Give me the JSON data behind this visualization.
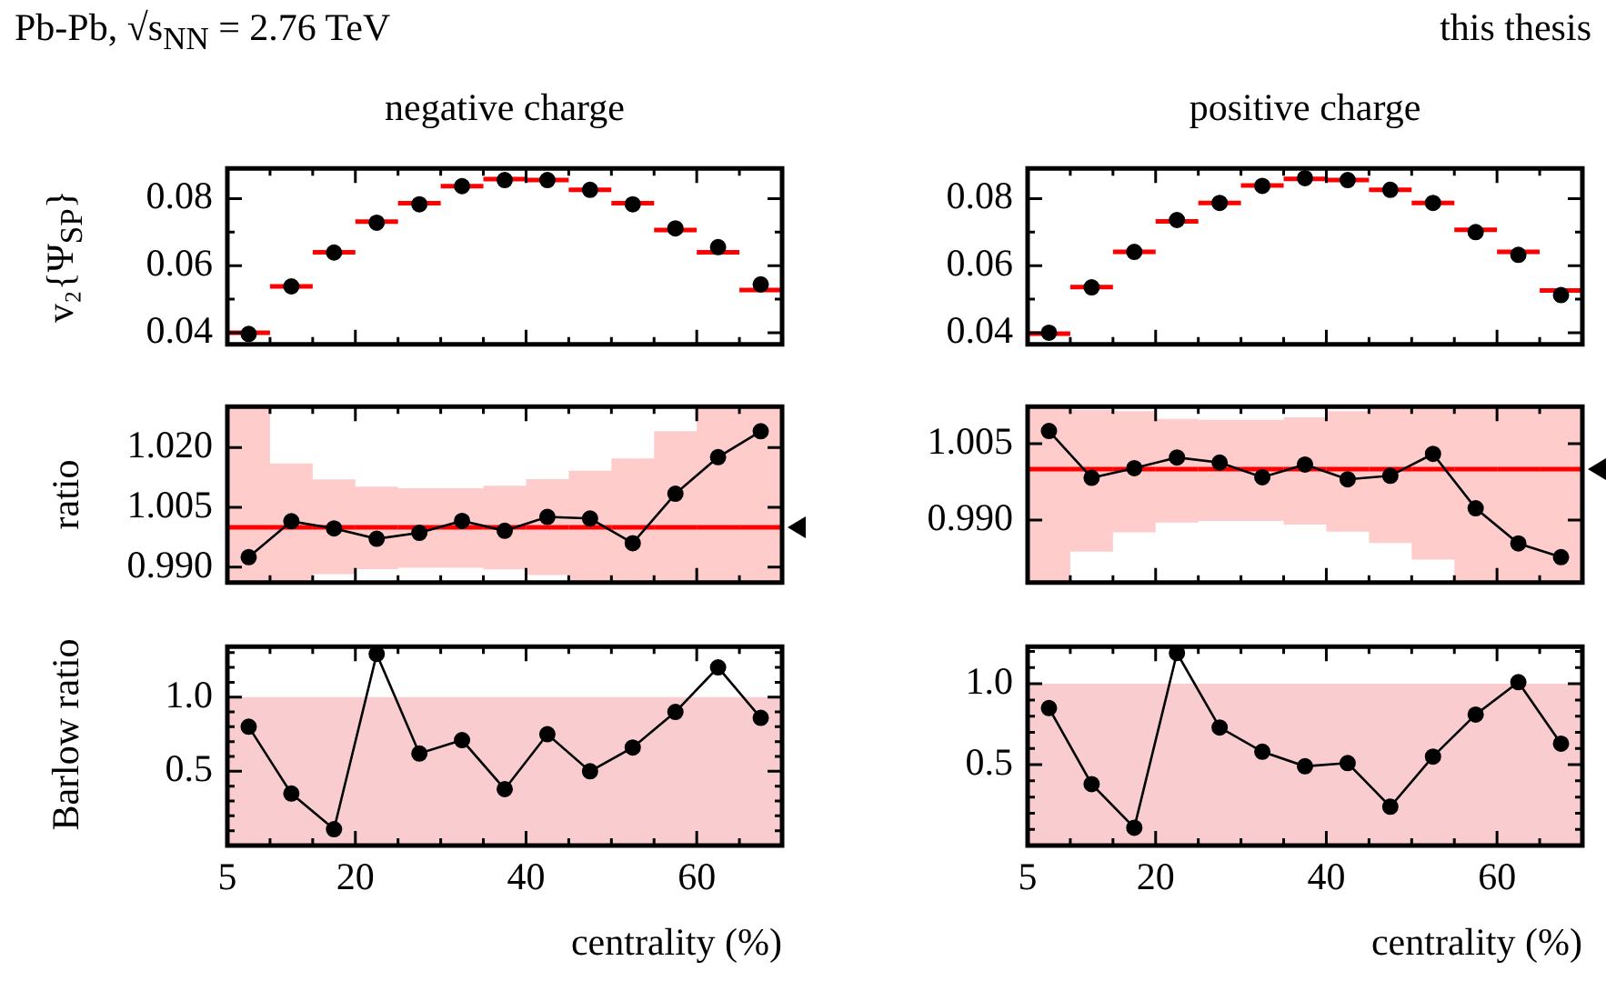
{
  "chart_data": [
    {
      "type": "scatter",
      "title": "negative charge",
      "ylabel": "v₂{Ψ$_{SP}$}",
      "annotations": [
        "Pb-Pb, √s$_{NN}$ = 2.76 TeV"
      ],
      "x": [
        7.5,
        12.5,
        17.5,
        22.5,
        27.5,
        32.5,
        37.5,
        42.5,
        47.5,
        52.5,
        57.5,
        62.5,
        67.5
      ],
      "xlim": [
        5,
        70
      ],
      "xticks": [
        5,
        {
          "value": 10,
          "label": null
        },
        {
          "value": 15,
          "label": null
        },
        20,
        {
          "value": 25,
          "label": null
        },
        {
          "value": 30,
          "label": null
        },
        {
          "value": 35,
          "label": null
        },
        40,
        {
          "value": 45,
          "label": null
        },
        {
          "value": 50,
          "label": null
        },
        {
          "value": 55,
          "label": null
        },
        60,
        {
          "value": 65,
          "label": null
        }
      ],
      "ylim": [
        0.0365,
        0.089
      ],
      "yticks": [
        0.04,
        {
          "value": 0.05,
          "label": null
        },
        0.06,
        {
          "value": 0.07,
          "label": null
        },
        0.08
      ],
      "tick_labels": "y",
      "series": [
        {
          "type": "step",
          "color": "#ff0000",
          "x": [
            5,
            10,
            15,
            20,
            25,
            30,
            35,
            40,
            45,
            50,
            55,
            60,
            65,
            70
          ],
          "values": [
            0.04,
            0.0538,
            0.064,
            0.0731,
            0.0786,
            0.0837,
            0.0858,
            0.0855,
            0.0826,
            0.0786,
            0.0706,
            0.064,
            0.0527,
            0.0527
          ]
        },
        {
          "color": "#000000",
          "marker": "circle",
          "values": [
            0.0396,
            0.0538,
            0.0639,
            0.0728,
            0.0783,
            0.0837,
            0.0855,
            0.0855,
            0.0826,
            0.0783,
            0.0711,
            0.0655,
            0.0544
          ]
        }
      ]
    },
    {
      "type": "scatter",
      "title": "positive charge",
      "annotations": [
        "this thesis"
      ],
      "x": [
        7.5,
        12.5,
        17.5,
        22.5,
        27.5,
        32.5,
        37.5,
        42.5,
        47.5,
        52.5,
        57.5,
        62.5,
        67.5
      ],
      "xlim": [
        5,
        70
      ],
      "xticks": [
        5,
        {
          "value": 10,
          "label": null
        },
        {
          "value": 15,
          "label": null
        },
        20,
        {
          "value": 25,
          "label": null
        },
        {
          "value": 30,
          "label": null
        },
        {
          "value": 35,
          "label": null
        },
        40,
        {
          "value": 45,
          "label": null
        },
        {
          "value": 50,
          "label": null
        },
        {
          "value": 55,
          "label": null
        },
        60,
        {
          "value": 65,
          "label": null
        }
      ],
      "ylim": [
        0.0365,
        0.089
      ],
      "yticks": [
        0.04,
        {
          "value": 0.05,
          "label": null
        },
        0.06,
        {
          "value": 0.07,
          "label": null
        },
        0.08
      ],
      "tick_labels": "y",
      "series": [
        {
          "type": "step",
          "color": "#ff0000",
          "x": [
            5,
            10,
            15,
            20,
            25,
            30,
            35,
            40,
            45,
            50,
            55,
            60,
            65,
            70
          ],
          "values": [
            0.0397,
            0.0536,
            0.0641,
            0.0732,
            0.0787,
            0.0839,
            0.0859,
            0.0855,
            0.0826,
            0.0787,
            0.0707,
            0.0641,
            0.0526,
            0.0526
          ]
        },
        {
          "color": "#000000",
          "marker": "circle",
          "values": [
            0.04,
            0.0535,
            0.0641,
            0.0736,
            0.0787,
            0.0838,
            0.0861,
            0.0855,
            0.0826,
            0.0787,
            0.07,
            0.0632,
            0.0512
          ]
        }
      ]
    },
    {
      "type": "line",
      "ylabel": "ratio",
      "x": [
        7.5,
        12.5,
        17.5,
        22.5,
        27.5,
        32.5,
        37.5,
        42.5,
        47.5,
        52.5,
        57.5,
        62.5,
        67.5
      ],
      "xlim": [
        5,
        70
      ],
      "xticks": [
        5,
        {
          "value": 10,
          "label": null
        },
        {
          "value": 15,
          "label": null
        },
        20,
        {
          "value": 25,
          "label": null
        },
        {
          "value": 30,
          "label": null
        },
        {
          "value": 35,
          "label": null
        },
        40,
        {
          "value": 45,
          "label": null
        },
        {
          "value": 50,
          "label": null
        },
        {
          "value": 55,
          "label": null
        },
        60,
        {
          "value": 65,
          "label": null
        }
      ],
      "ylim": [
        0.9861,
        1.0303
      ],
      "yticks": [
        {
          "value": 0.99,
          "label": "0.990"
        },
        {
          "value": 1.005,
          "label": "1.005"
        },
        {
          "value": 1.02,
          "label": "1.020"
        }
      ],
      "tick_labels": "y",
      "series": [
        {
          "type": "step",
          "color": "#ff0000",
          "x": [
            5,
            10,
            15,
            20,
            25,
            30,
            35,
            40,
            45,
            50,
            55,
            60,
            65,
            70
          ],
          "values": [
            1,
            1,
            1,
            1,
            1,
            1,
            1,
            1,
            1,
            1,
            1,
            1,
            1,
            1
          ],
          "lower": [
            0.9861,
            0.9861,
            0.9882,
            0.9895,
            0.9898,
            0.9898,
            0.9894,
            0.988,
            0.9861,
            0.9861,
            0.9861,
            0.9861,
            0.9861,
            0.9861
          ],
          "upper": [
            1.0303,
            1.016,
            1.012,
            1.0102,
            1.0098,
            1.0098,
            1.0104,
            1.0121,
            1.0142,
            1.0173,
            1.0241,
            1.0303,
            1.0303,
            1.0303
          ]
        },
        {
          "color": "#000000",
          "marker": "circle",
          "values": [
            0.9925,
            1.0015,
            0.9997,
            0.9971,
            0.9986,
            1.0016,
            0.9991,
            1.0026,
            1.0022,
            0.996,
            1.0084,
            1.0176,
            1.0241
          ]
        }
      ]
    },
    {
      "type": "line",
      "x": [
        7.5,
        12.5,
        17.5,
        22.5,
        27.5,
        32.5,
        37.5,
        42.5,
        47.5,
        52.5,
        57.5,
        62.5,
        67.5
      ],
      "xlim": [
        5,
        70
      ],
      "xticks": [
        5,
        {
          "value": 10,
          "label": null
        },
        {
          "value": 15,
          "label": null
        },
        20,
        {
          "value": 25,
          "label": null
        },
        {
          "value": 30,
          "label": null
        },
        {
          "value": 35,
          "label": null
        },
        40,
        {
          "value": 45,
          "label": null
        },
        {
          "value": 50,
          "label": null
        },
        {
          "value": 55,
          "label": null
        },
        60,
        {
          "value": 65,
          "label": null
        }
      ],
      "ylim": [
        0.9777,
        1.0123
      ],
      "yticks": [
        {
          "value": 0.99,
          "label": "0.990"
        },
        {
          "value": 1.005,
          "label": "1.005"
        }
      ],
      "tick_labels": "y",
      "series": [
        {
          "type": "step",
          "color": "#ff0000",
          "x": [
            5,
            10,
            15,
            20,
            25,
            30,
            35,
            40,
            45,
            50,
            55,
            60,
            65,
            70
          ],
          "values": [
            1,
            1,
            1,
            1,
            1,
            1,
            1,
            1,
            1,
            1,
            1,
            1,
            1,
            1
          ],
          "lower": [
            0.9777,
            0.9838,
            0.9876,
            0.9895,
            0.9898,
            0.9898,
            0.9891,
            0.9877,
            0.9855,
            0.9822,
            0.9777,
            0.9777,
            0.9777,
            0.9777
          ],
          "upper": [
            1.0123,
            1.0116,
            1.0114,
            1.0099,
            1.0097,
            1.0097,
            1.0102,
            1.0114,
            1.0123,
            1.0123,
            1.0123,
            1.0123,
            1.0123,
            1.0123
          ]
        },
        {
          "color": "#000000",
          "marker": "circle",
          "values": [
            1.0075,
            0.9983,
            1.0002,
            1.0023,
            1.0013,
            0.9984,
            1.0009,
            0.998,
            0.9987,
            1.003,
            0.9923,
            0.9854,
            0.9827
          ]
        }
      ]
    },
    {
      "type": "line",
      "ylabel": "Barlow ratio",
      "xlabel": "centrality (%)",
      "x": [
        7.5,
        12.5,
        17.5,
        22.5,
        27.5,
        32.5,
        37.5,
        42.5,
        47.5,
        52.5,
        57.5,
        62.5,
        67.5
      ],
      "xlim": [
        5,
        70
      ],
      "xticks": [
        5,
        {
          "value": 10,
          "label": null
        },
        {
          "value": 15,
          "label": null
        },
        20,
        {
          "value": 25,
          "label": null
        },
        {
          "value": 30,
          "label": null
        },
        {
          "value": 35,
          "label": null
        },
        40,
        {
          "value": 45,
          "label": null
        },
        {
          "value": 50,
          "label": null
        },
        {
          "value": 55,
          "label": null
        },
        60,
        {
          "value": 65,
          "label": null
        }
      ],
      "ylim": [
        0,
        1.34
      ],
      "yticks": [
        {
          "value": 0.1,
          "label": null
        },
        {
          "value": 0.2,
          "label": null
        },
        {
          "value": 0.3,
          "label": null
        },
        {
          "value": 0.4,
          "label": null
        },
        0.5,
        {
          "value": 0.6,
          "label": null
        },
        {
          "value": 0.7,
          "label": null
        },
        {
          "value": 0.8,
          "label": null
        },
        {
          "value": 0.9,
          "label": null
        },
        {
          "value": 1,
          "label": "1.0"
        },
        {
          "value": 1.1,
          "label": null
        },
        {
          "value": 1.2,
          "label": null
        },
        {
          "value": 1.3,
          "label": null
        }
      ],
      "marker": "circle",
      "bands": [
        {
          "axis": "y",
          "from": 0,
          "to": 1,
          "color": "#f9cccf"
        }
      ],
      "series": [
        {
          "color": "#000000",
          "values": [
            0.8,
            0.35,
            0.11,
            1.29,
            0.62,
            0.71,
            0.38,
            0.75,
            0.5,
            0.66,
            0.9,
            1.2,
            0.86
          ]
        }
      ]
    },
    {
      "type": "line",
      "xlabel": "centrality (%)",
      "x": [
        7.5,
        12.5,
        17.5,
        22.5,
        27.5,
        32.5,
        37.5,
        42.5,
        47.5,
        52.5,
        57.5,
        62.5,
        67.5
      ],
      "xlim": [
        5,
        70
      ],
      "xticks": [
        5,
        {
          "value": 10,
          "label": null
        },
        {
          "value": 15,
          "label": null
        },
        20,
        {
          "value": 25,
          "label": null
        },
        {
          "value": 30,
          "label": null
        },
        {
          "value": 35,
          "label": null
        },
        40,
        {
          "value": 45,
          "label": null
        },
        {
          "value": 50,
          "label": null
        },
        {
          "value": 55,
          "label": null
        },
        60,
        {
          "value": 65,
          "label": null
        }
      ],
      "ylim": [
        0,
        1.23
      ],
      "yticks": [
        {
          "value": 0.1,
          "label": null
        },
        {
          "value": 0.2,
          "label": null
        },
        {
          "value": 0.3,
          "label": null
        },
        {
          "value": 0.4,
          "label": null
        },
        0.5,
        {
          "value": 0.6,
          "label": null
        },
        {
          "value": 0.7,
          "label": null
        },
        {
          "value": 0.8,
          "label": null
        },
        {
          "value": 0.9,
          "label": null
        },
        {
          "value": 1,
          "label": "1.0"
        },
        {
          "value": 1.1,
          "label": null
        },
        {
          "value": 1.2,
          "label": null
        }
      ],
      "marker": "circle",
      "bands": [
        {
          "axis": "y",
          "from": 0,
          "to": 1,
          "color": "#f9cccf"
        }
      ],
      "series": [
        {
          "color": "#000000",
          "values": [
            0.85,
            0.38,
            0.11,
            1.19,
            0.73,
            0.58,
            0.49,
            0.51,
            0.24,
            0.55,
            0.81,
            1.01,
            0.63
          ]
        }
      ]
    }
  ]
}
